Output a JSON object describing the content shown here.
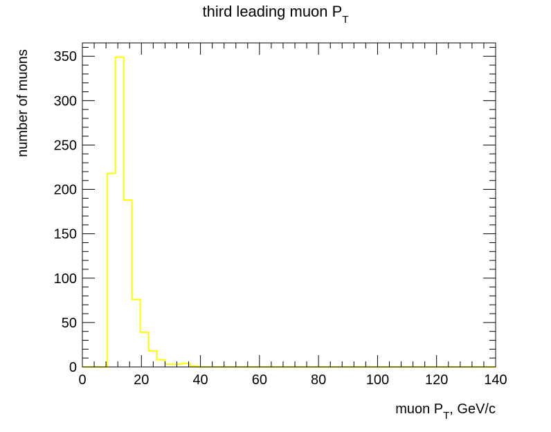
{
  "chart_data": {
    "type": "histogram",
    "title_main": "third leading muon P",
    "title_sub": "T",
    "xlabel_main": "muon P",
    "xlabel_sub": "T",
    "xlabel_tail": ", GeV/c",
    "ylabel": "number of muons",
    "xlim": [
      0,
      140
    ],
    "ylim": [
      0,
      365
    ],
    "x_major_ticks": [
      0,
      20,
      40,
      60,
      80,
      100,
      120,
      140
    ],
    "x_tick_labels": [
      "0",
      "20",
      "40",
      "60",
      "80",
      "100",
      "120",
      "140"
    ],
    "y_major_ticks": [
      0,
      50,
      100,
      150,
      200,
      250,
      300,
      350
    ],
    "y_tick_labels": [
      "0",
      "50",
      "100",
      "150",
      "200",
      "250",
      "300",
      "350"
    ],
    "bin_width": 2.8,
    "bin_edges_start": 0,
    "bin_values": [
      0,
      0,
      0,
      218,
      349,
      188,
      76,
      39,
      18,
      8,
      3,
      3,
      4,
      1,
      0,
      0,
      0,
      0,
      0,
      0,
      0,
      0,
      0,
      0,
      0,
      0,
      0,
      0,
      0,
      0,
      0,
      0,
      0,
      0,
      0,
      0,
      0,
      0,
      0,
      0,
      0,
      0,
      0,
      0,
      0,
      0,
      0,
      0,
      0,
      0
    ],
    "line_color": "#ffff00",
    "grid": false,
    "legend": "none"
  }
}
